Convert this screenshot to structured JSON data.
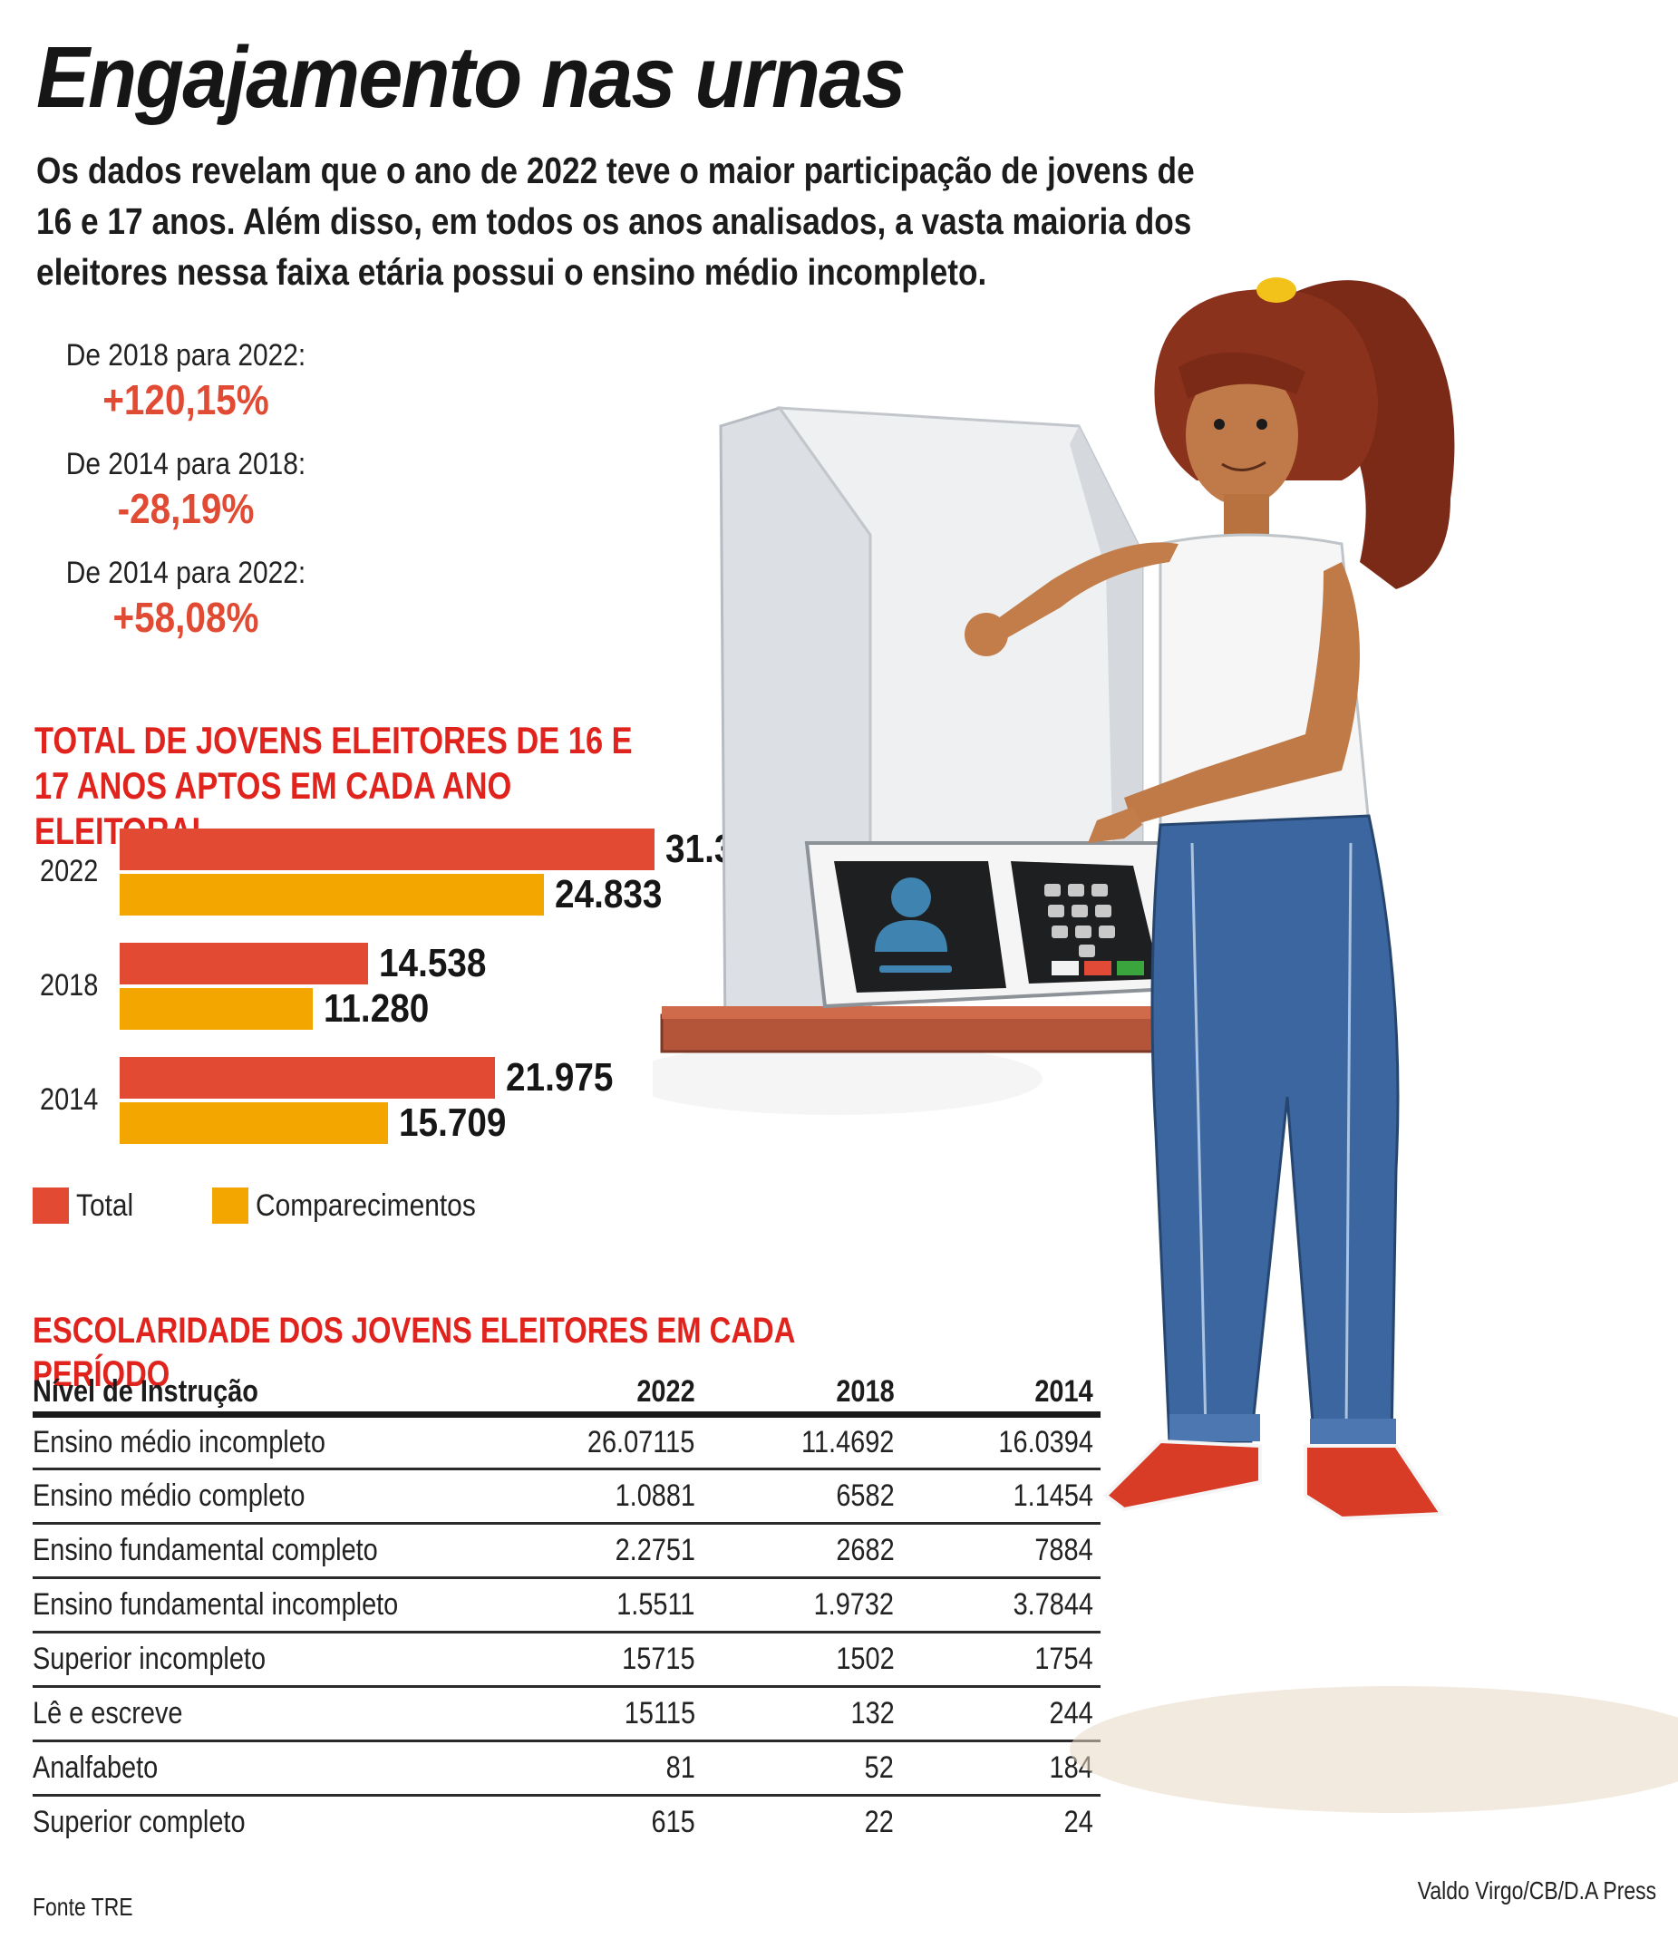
{
  "header": {
    "title": "Engajamento nas urnas",
    "intro": "Os dados revelam que o ano de 2022 teve o maior participação de jovens de 16 e 17 anos. Além disso, em todos os anos analisados, a vasta maioria dos eleitores nessa faixa etária possui o ensino médio incompleto."
  },
  "stats": [
    {
      "label": "De 2018 para 2022:",
      "value": "+120,15%"
    },
    {
      "label": "De 2014 para 2018:",
      "value": "-28,19%"
    },
    {
      "label": "De 2014 para 2022:",
      "value": "+58,08%"
    }
  ],
  "colors": {
    "accent_red": "#e0241d",
    "total": "#e24a33",
    "comparecimentos": "#f4a600",
    "stat_value": "#e14a33"
  },
  "chart_data": {
    "type": "bar",
    "orientation": "horizontal",
    "title": "TOTAL DE JOVENS ELEITORES DE 16 E 17 ANOS APTOS EM CADA ANO ELEITORAL",
    "categories": [
      "2022",
      "2018",
      "2014"
    ],
    "series": [
      {
        "name": "Total",
        "values": [
          31307,
          14538,
          21975
        ],
        "labels": [
          "31.307",
          "14.538",
          "21.975"
        ],
        "color": "#e24a33"
      },
      {
        "name": "Comparecimentos",
        "values": [
          24833,
          11280,
          15709
        ],
        "labels": [
          "24.833",
          "11.280",
          "15.709"
        ],
        "color": "#f4a600"
      }
    ],
    "xlabel": "",
    "ylabel": "",
    "grid": false,
    "legend_position": "bottom-left",
    "max_value": 31307
  },
  "legend": [
    {
      "label": "Total"
    },
    {
      "label": "Comparecimentos"
    }
  ],
  "table": {
    "title": "ESCOLARIDADE DOS JOVENS ELEITORES EM CADA PERÍODO",
    "headers": [
      "Nível de Instrução",
      "2022",
      "2018",
      "2014"
    ],
    "rows": [
      [
        "Ensino médio incompleto",
        "26.07115",
        "11.4692",
        "16.0394"
      ],
      [
        "Ensino médio completo",
        "1.0881",
        "6582",
        "1.1454"
      ],
      [
        "Ensino fundamental completo",
        "2.2751",
        "2682",
        "7884"
      ],
      [
        "Ensino fundamental incompleto",
        "1.5511",
        "1.9732",
        "3.7844"
      ],
      [
        "Superior incompleto",
        "15715",
        "1502",
        "1754"
      ],
      [
        "Lê e escreve",
        "15115",
        "132",
        "244"
      ],
      [
        "Analfabeto",
        "81",
        "52",
        "184"
      ],
      [
        "Superior completo",
        "615",
        "22",
        "24"
      ]
    ]
  },
  "footer": {
    "source": "Fonte TRE",
    "credit": "Valdo Virgo/CB/D.A Press"
  }
}
